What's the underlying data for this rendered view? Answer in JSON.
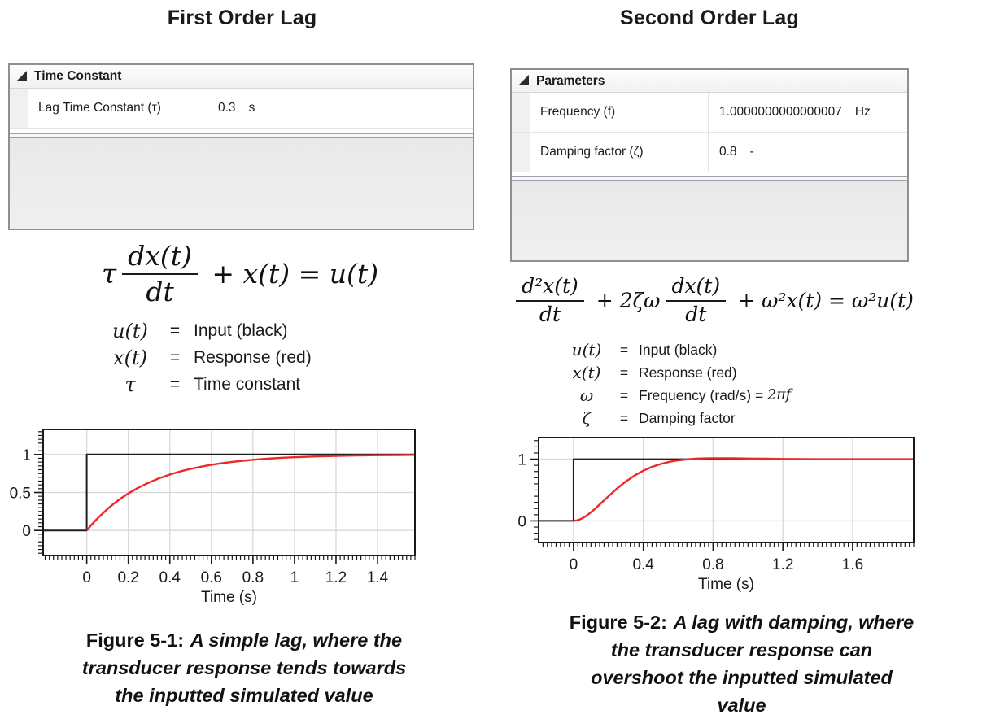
{
  "colors": {
    "response_red": "#ee2727",
    "input_black": "#1f1f1f",
    "grid_line": "#d8d8d8",
    "panel_gray": "#ececec",
    "border_gray": "#8f8f8f"
  },
  "panels": [
    {
      "title": "First Order Lag",
      "grid": {
        "header": "Time Constant",
        "rows": [
          {
            "name": "Lag Time Constant (τ)",
            "value": "0.3",
            "unit": "s"
          }
        ]
      },
      "equation": {
        "lead": "τ",
        "frac1_num": "dx(t)",
        "frac1_den": "dt",
        "rest": " + x(t) = u(t)"
      },
      "legend": [
        {
          "sym": "u(t)",
          "eq": "=",
          "text": "Input (black)",
          "suffix": ""
        },
        {
          "sym": "x(t)",
          "eq": "=",
          "text": "Response (red)",
          "suffix": ""
        },
        {
          "sym": "τ",
          "eq": "=",
          "text": "Time constant",
          "suffix": ""
        }
      ],
      "caption": {
        "line1_prefix": "Figure 5-1:",
        "line1_rest": "A simple lag, where the",
        "line2": "transducer response tends towards",
        "line3": "the inputted simulated value",
        "line4": ""
      }
    },
    {
      "title": "Second Order Lag",
      "grid": {
        "header": "Parameters",
        "rows": [
          {
            "name": "Frequency (f)",
            "value": "1.0000000000000007",
            "unit": "Hz"
          },
          {
            "name": "Damping factor (ζ)",
            "value": "0.8",
            "unit": "-"
          }
        ]
      },
      "equation": {
        "lead": "",
        "frac1_num": "d²x(t)",
        "frac1_den": "dt",
        "mid": " + 2ζω",
        "frac2_num": "dx(t)",
        "frac2_den": "dt",
        "rest": " + ω²x(t) = ω²u(t)"
      },
      "legend": [
        {
          "sym": "u(t)",
          "eq": "=",
          "text": "Input (black)",
          "suffix": ""
        },
        {
          "sym": "x(t)",
          "eq": "=",
          "text": "Response (red)",
          "suffix": ""
        },
        {
          "sym": "ω",
          "eq": "=",
          "text": "Frequency (rad/s) = ",
          "suffix": "2πf"
        },
        {
          "sym": "ζ",
          "eq": "=",
          "text": "Damping factor",
          "suffix": ""
        }
      ],
      "caption": {
        "line1_prefix": "Figure 5-2:",
        "line1_rest": "A lag with damping, where",
        "line2": "the transducer response can",
        "line3": "overshoot the inputted simulated",
        "line4": "value"
      }
    }
  ],
  "chart_data": [
    {
      "type": "line",
      "title": "",
      "xlabel": "Time (s)",
      "ylabel": "",
      "xlim": [
        -0.21,
        1.58
      ],
      "ylim": [
        -0.33,
        1.33
      ],
      "xticks": [
        0,
        0.2,
        0.4,
        0.6,
        0.8,
        1,
        1.2,
        1.4
      ],
      "xtick_labels": [
        "0",
        "0.2",
        "0.4",
        "0.6",
        "0.8",
        "1",
        "1.2",
        "1.4"
      ],
      "yticks": [
        0,
        0.5,
        1
      ],
      "ytick_labels": [
        "0",
        "0.5",
        "1"
      ],
      "x_minor_step": 0.02,
      "y_minor_step": 0.05,
      "grid": true,
      "grid_color": "#d8d8d8",
      "legend_position": "none",
      "series": [
        {
          "name": "Input u(t) (black step)",
          "color": "#1f1f1f",
          "width": 2,
          "points": [
            [
              -0.21,
              0
            ],
            [
              0,
              0
            ],
            [
              0,
              1
            ],
            [
              1.58,
              1
            ]
          ]
        },
        {
          "name": "Response x(t) (red, first-order lag, τ=0.3 s)",
          "color": "#ee2727",
          "width": 2.4,
          "points": [
            [
              0,
              0
            ],
            [
              0.025,
              0.08
            ],
            [
              0.05,
              0.154
            ],
            [
              0.075,
              0.221
            ],
            [
              0.1,
              0.283
            ],
            [
              0.125,
              0.341
            ],
            [
              0.15,
              0.393
            ],
            [
              0.175,
              0.442
            ],
            [
              0.2,
              0.487
            ],
            [
              0.25,
              0.565
            ],
            [
              0.3,
              0.632
            ],
            [
              0.35,
              0.689
            ],
            [
              0.4,
              0.736
            ],
            [
              0.45,
              0.777
            ],
            [
              0.5,
              0.811
            ],
            [
              0.55,
              0.84
            ],
            [
              0.6,
              0.865
            ],
            [
              0.65,
              0.885
            ],
            [
              0.7,
              0.903
            ],
            [
              0.75,
              0.918
            ],
            [
              0.8,
              0.93
            ],
            [
              0.85,
              0.941
            ],
            [
              0.9,
              0.95
            ],
            [
              0.95,
              0.958
            ],
            [
              1,
              0.964
            ],
            [
              1.1,
              0.974
            ],
            [
              1.2,
              0.982
            ],
            [
              1.3,
              0.987
            ],
            [
              1.4,
              0.991
            ],
            [
              1.5,
              0.993
            ],
            [
              1.58,
              0.995
            ]
          ]
        }
      ]
    },
    {
      "type": "line",
      "title": "",
      "xlabel": "Time (s)",
      "ylabel": "",
      "xlim": [
        -0.2,
        1.95
      ],
      "ylim": [
        -0.35,
        1.35
      ],
      "xticks": [
        0,
        0.4,
        0.8,
        1.2,
        1.6
      ],
      "xtick_labels": [
        "0",
        "0.4",
        "0.8",
        "1.2",
        "1.6"
      ],
      "yticks": [
        0,
        1
      ],
      "ytick_labels": [
        "0",
        "1"
      ],
      "x_minor_step": 0.025,
      "y_minor_step": 0.1,
      "grid": true,
      "grid_color": "#d8d8d8",
      "legend_position": "none",
      "series": [
        {
          "name": "Input u(t) (black step)",
          "color": "#1f1f1f",
          "width": 2,
          "points": [
            [
              -0.2,
              0
            ],
            [
              0,
              0
            ],
            [
              0,
              1
            ],
            [
              1.95,
              1
            ]
          ]
        },
        {
          "name": "Response x(t) (red, second-order lag, f=1 Hz, ζ=0.8)",
          "color": "#ee2727",
          "width": 2.4,
          "points": [
            [
              0,
              0
            ],
            [
              0.025,
              0.011
            ],
            [
              0.05,
              0.042
            ],
            [
              0.075,
              0.086
            ],
            [
              0.1,
              0.14
            ],
            [
              0.125,
              0.201
            ],
            [
              0.15,
              0.267
            ],
            [
              0.175,
              0.333
            ],
            [
              0.2,
              0.399
            ],
            [
              0.25,
              0.526
            ],
            [
              0.3,
              0.639
            ],
            [
              0.35,
              0.735
            ],
            [
              0.4,
              0.813
            ],
            [
              0.45,
              0.875
            ],
            [
              0.5,
              0.922
            ],
            [
              0.55,
              0.957
            ],
            [
              0.6,
              0.981
            ],
            [
              0.65,
              0.997
            ],
            [
              0.7,
              1.007
            ],
            [
              0.75,
              1.012
            ],
            [
              0.8,
              1.015
            ],
            [
              0.85,
              1.015
            ],
            [
              0.9,
              1.014
            ],
            [
              0.95,
              1.012
            ],
            [
              1,
              1.01
            ],
            [
              1.1,
              1.007
            ],
            [
              1.2,
              1.004
            ],
            [
              1.3,
              1.002
            ],
            [
              1.4,
              1
            ],
            [
              1.5,
              1
            ],
            [
              1.6,
              1
            ],
            [
              1.75,
              1
            ],
            [
              1.95,
              1
            ]
          ]
        }
      ]
    }
  ]
}
